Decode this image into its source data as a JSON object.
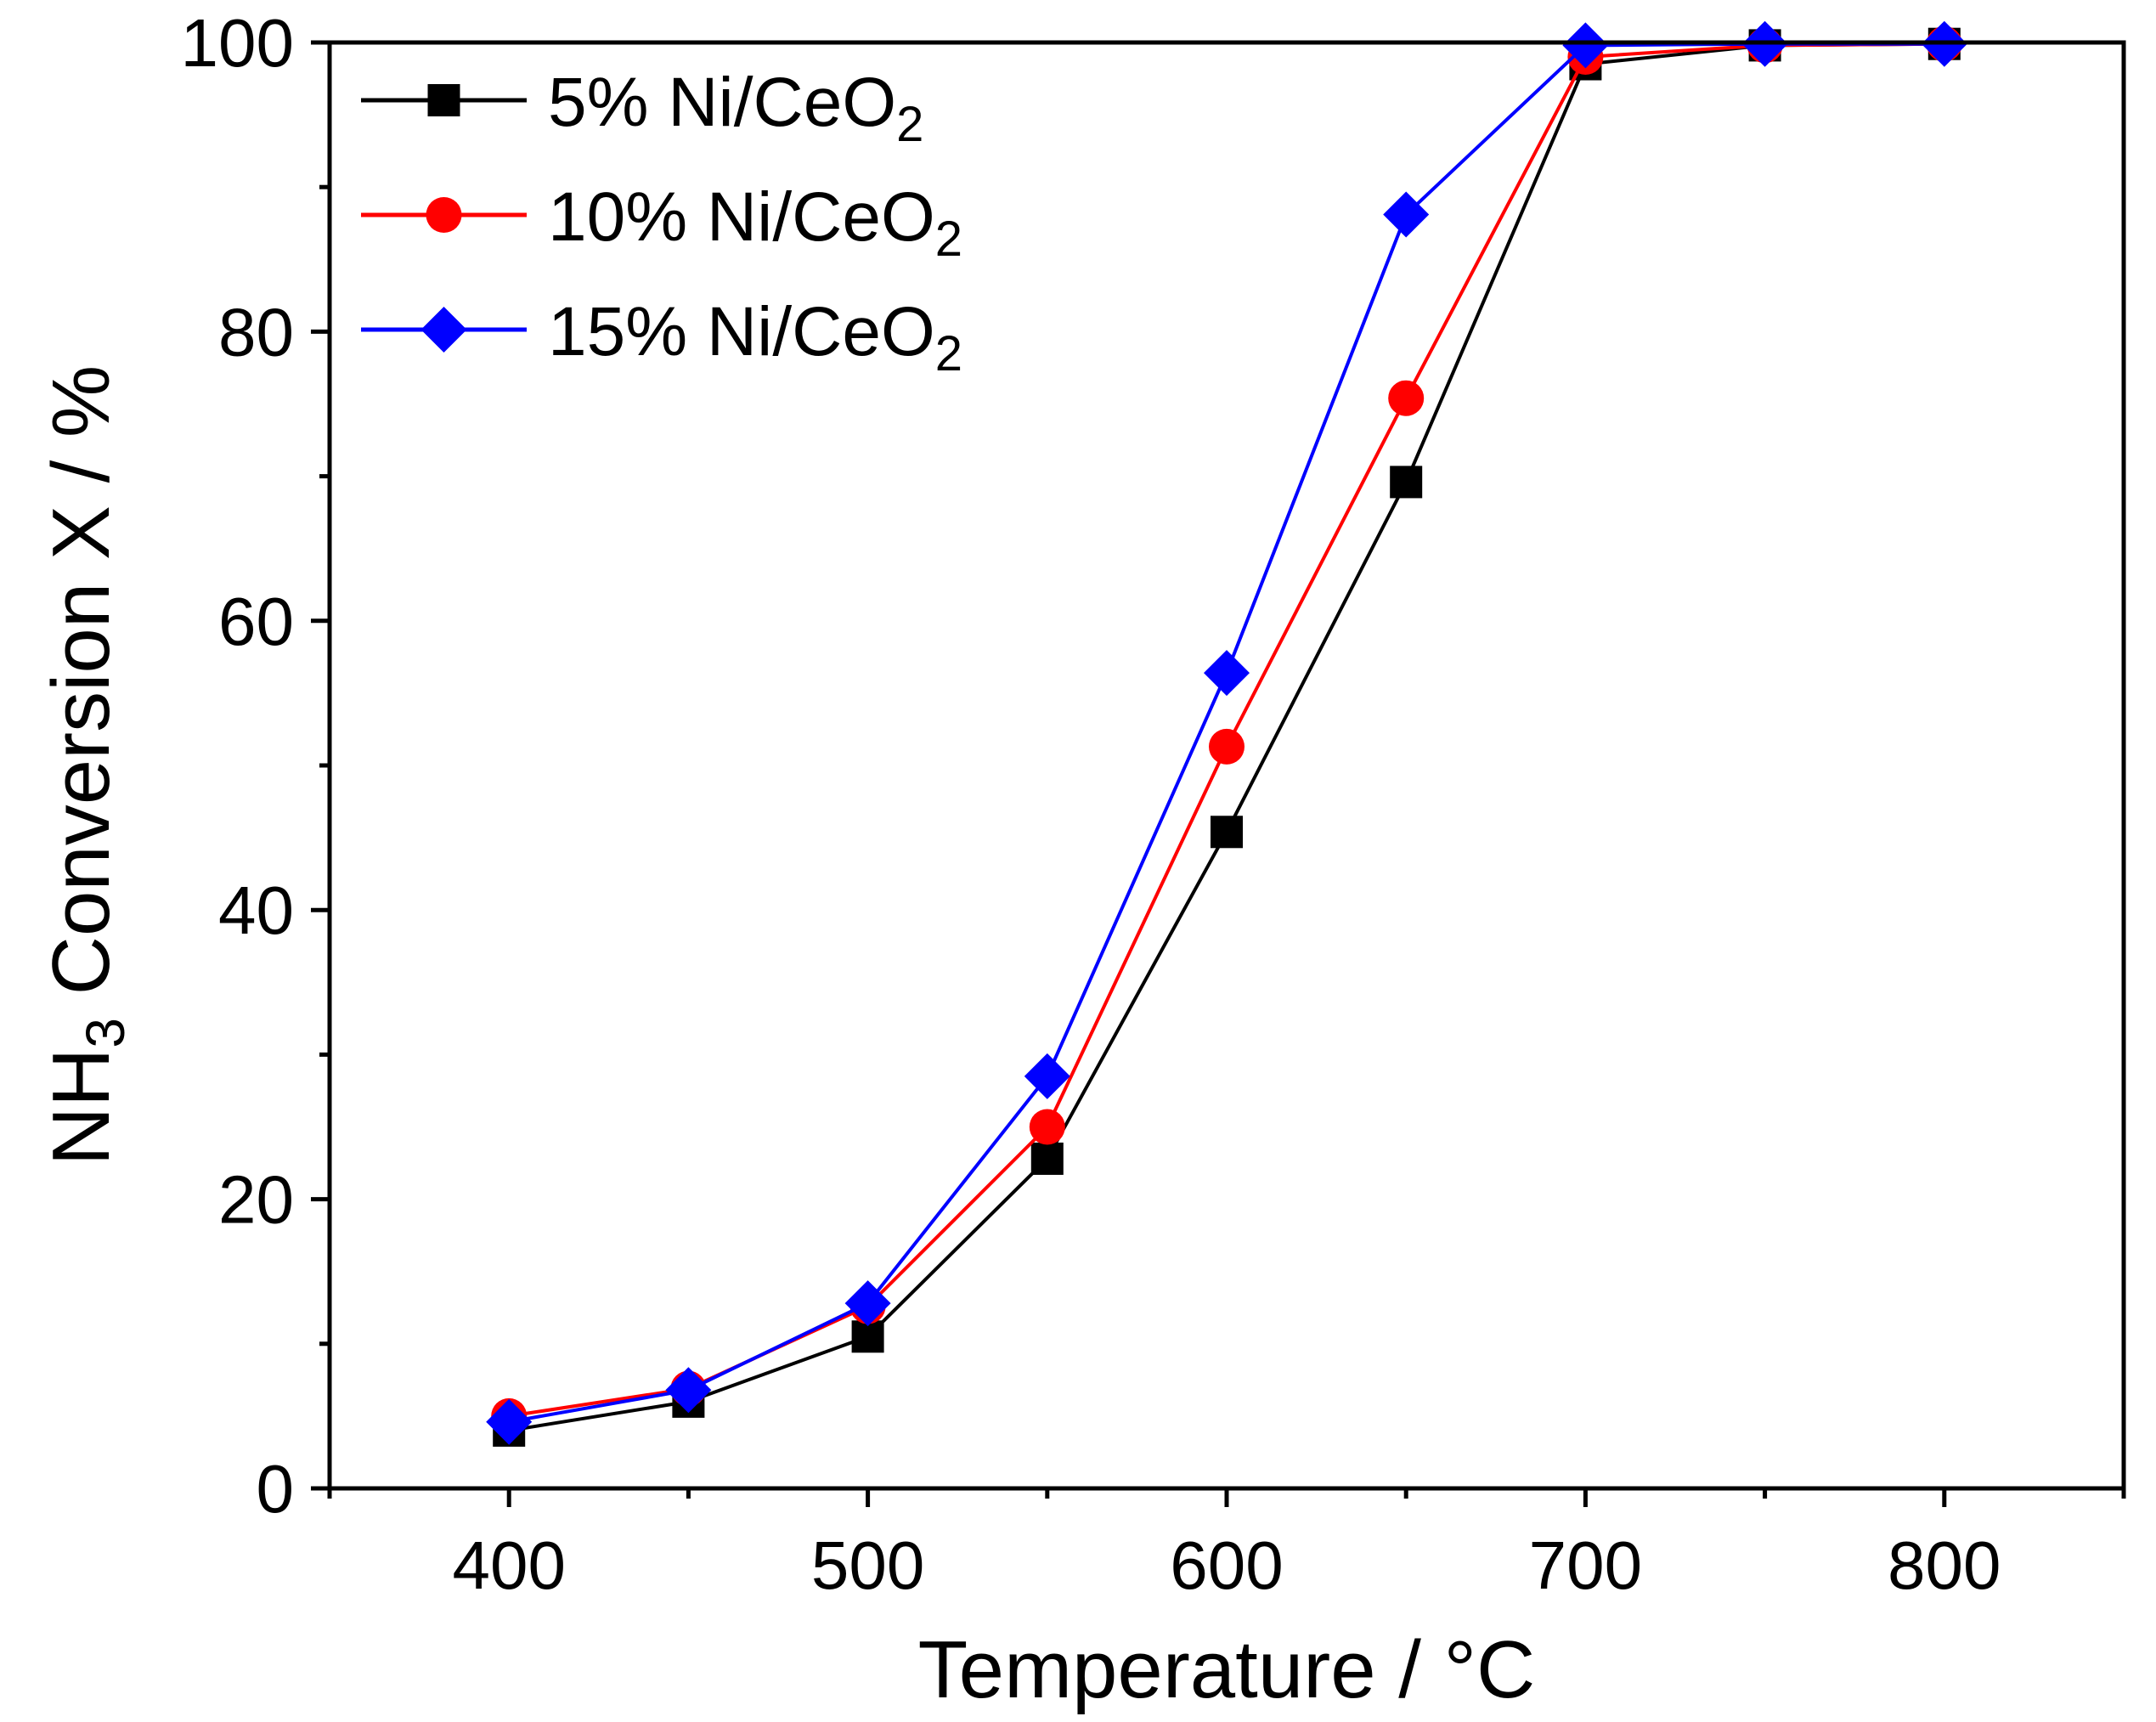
{
  "chart_data": {
    "type": "line",
    "title": "",
    "xlabel": "Temperature / °C",
    "ylabel": "NH3 Conversion X / %",
    "ylabel_parts": {
      "pre": "NH",
      "sub": "3",
      "post": " Conversion X / %"
    },
    "xlim": [
      350,
      850
    ],
    "ylim": [
      0,
      100
    ],
    "xticks": [
      400,
      500,
      600,
      700,
      800
    ],
    "xtick_labels": [
      "400",
      "500",
      "600",
      "700",
      "800"
    ],
    "yticks": [
      0,
      20,
      40,
      60,
      80,
      100
    ],
    "ytick_labels": [
      "0",
      "20",
      "40",
      "60",
      "80",
      "100"
    ],
    "x": [
      400,
      450,
      500,
      550,
      600,
      650,
      700,
      750,
      800
    ],
    "legend_position": "top-left",
    "series": [
      {
        "name": "5% Ni/CeO2",
        "label_parts": {
          "pre": "5% Ni/CeO",
          "sub": "2"
        },
        "color": "#000000",
        "marker": "square",
        "values": [
          4,
          6,
          10.5,
          22.8,
          45.4,
          69.6,
          98.5,
          99.8,
          99.9
        ]
      },
      {
        "name": "10% Ni/CeO2",
        "label_parts": {
          "pre": "10% Ni/CeO",
          "sub": "2"
        },
        "color": "#ff0000",
        "marker": "circle",
        "values": [
          5,
          6.9,
          12.6,
          25,
          51.3,
          75.4,
          99,
          99.8,
          99.9
        ]
      },
      {
        "name": "15% Ni/CeO2",
        "label_parts": {
          "pre": "15% Ni/CeO",
          "sub": "2"
        },
        "color": "#0000ff",
        "marker": "diamond",
        "values": [
          4.6,
          6.8,
          12.8,
          28.5,
          56.4,
          88.1,
          99.8,
          99.9,
          99.9
        ]
      }
    ]
  }
}
